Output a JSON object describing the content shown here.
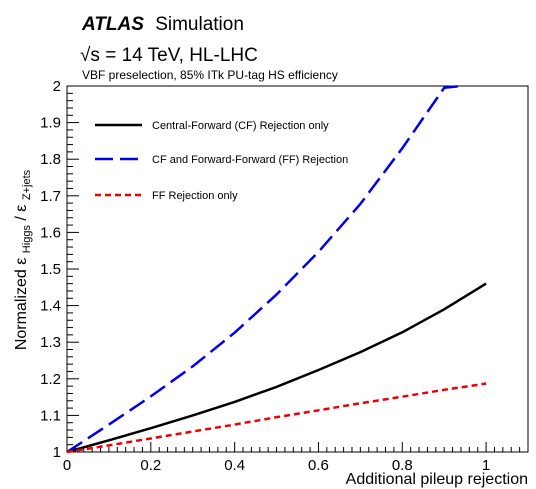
{
  "header": {
    "experiment": "ATLAS",
    "label": "Simulation",
    "energy_prefix": "√s",
    "energy_suffix": " = 14 TeV, HL-LHC",
    "selection": "VBF preselection, 85% ITk PU-tag HS efficiency"
  },
  "chart_data": {
    "type": "line",
    "xlabel": "Additional pileup rejection",
    "ylabel": {
      "prefix": "Normalized ",
      "num_sym": "ε",
      "num_sub": "Higgs",
      "slash": " / ",
      "den_sym": "ε",
      "den_sub": "Z+jets"
    },
    "xlim": [
      0,
      1.1
    ],
    "ylim": [
      1.0,
      2.0
    ],
    "x_ticks": [
      0,
      0.2,
      0.4,
      0.6,
      0.8,
      1
    ],
    "x_tick_labels": [
      "0",
      "0.2",
      "0.4",
      "0.6",
      "0.8",
      "1"
    ],
    "y_ticks": [
      1,
      1.1,
      1.2,
      1.3,
      1.4,
      1.5,
      1.6,
      1.7,
      1.8,
      1.9,
      2
    ],
    "y_tick_labels": [
      "1",
      "1.1",
      "1.2",
      "1.3",
      "1.4",
      "1.5",
      "1.6",
      "1.7",
      "1.8",
      "1.9",
      "2"
    ],
    "grid": false,
    "legend_position": "top-left",
    "series": [
      {
        "name": "Central-Forward (CF) Rejection only",
        "color": "#000000",
        "style": "solid",
        "x": [
          0,
          0.1,
          0.2,
          0.3,
          0.4,
          0.5,
          0.6,
          0.7,
          0.8,
          0.9,
          1.0
        ],
        "y": [
          1.0,
          1.032,
          1.065,
          1.1,
          1.137,
          1.178,
          1.224,
          1.273,
          1.327,
          1.39,
          1.46
        ]
      },
      {
        "name": "CF and Forward-Forward (FF) Rejection",
        "color": "#0000ee",
        "style": "dashed",
        "x": [
          0,
          0.1,
          0.2,
          0.3,
          0.4,
          0.5,
          0.6,
          0.7,
          0.8,
          0.9,
          0.94
        ],
        "y": [
          1.0,
          1.075,
          1.152,
          1.234,
          1.326,
          1.43,
          1.547,
          1.678,
          1.83,
          1.995,
          2.0
        ]
      },
      {
        "name": "FF Rejection only",
        "color": "#ee0000",
        "style": "dotted",
        "x": [
          0,
          0.1,
          0.2,
          0.3,
          0.4,
          0.5,
          0.6,
          0.7,
          0.8,
          0.9,
          1.0
        ],
        "y": [
          1.0,
          1.018,
          1.037,
          1.056,
          1.075,
          1.095,
          1.114,
          1.133,
          1.151,
          1.17,
          1.187
        ]
      }
    ]
  }
}
